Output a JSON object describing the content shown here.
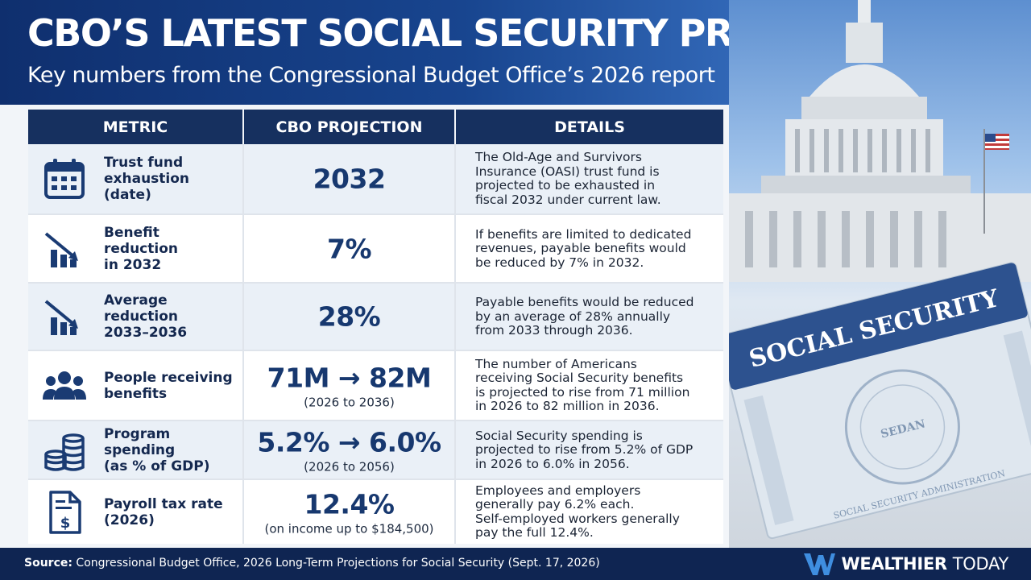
{
  "header": {
    "title": "CBO’S LATEST SOCIAL SECURITY PROJECTIONS",
    "subtitle": "Key numbers from the Congressional Budget Office’s 2026 report"
  },
  "table": {
    "columns": [
      "METRIC",
      "CBO PROJECTION",
      "DETAILS"
    ],
    "rows": [
      {
        "icon": "calendar-icon",
        "metric": "Trust fund\nexhaustion\n(date)",
        "value": "2032",
        "sub": "",
        "details": "The Old-Age and Survivors\nInsurance (OASI) trust fund is\nprojected to be exhausted in\nfiscal 2032 under current law."
      },
      {
        "icon": "declining-chart-icon",
        "metric": "Benefit\nreduction\nin 2032",
        "value": "7%",
        "sub": "",
        "details": "If benefits are limited to dedicated\nrevenues, payable benefits would\nbe reduced by 7% in 2032."
      },
      {
        "icon": "declining-chart-icon",
        "metric": "Average\nreduction\n2033–2036",
        "value": "28%",
        "sub": "",
        "details": "Payable benefits would be reduced\nby an average of 28% annually\nfrom 2033 through 2036."
      },
      {
        "icon": "people-icon",
        "metric": "People receiving\nbenefits",
        "value": "71M → 82M",
        "sub": "(2026 to 2036)",
        "details": "The number of Americans\nreceiving Social Security benefits\nis projected to rise from 71 million\nin 2026 to 82 million in 2036."
      },
      {
        "icon": "coin-stack-icon",
        "metric": "Program spending\n(as % of GDP)",
        "value": "5.2% → 6.0%",
        "sub": "(2026 to 2056)",
        "details": "Social Security spending is\nprojected to rise from 5.2% of GDP\nin 2026 to 6.0% in 2056."
      },
      {
        "icon": "tax-document-icon",
        "metric": "Payroll tax rate\n(2026)",
        "value": "12.4%",
        "sub": "(on income up to $184,500)",
        "details": "Employees and employers\ngenerally pay 6.2% each.\nSelf-employed workers generally\npay the full 12.4%."
      }
    ]
  },
  "photo": {
    "card_title": "SOCIAL SECURITY",
    "seal_text": "SOCIAL SECURITY ADMINISTRATION",
    "seal_label": "SEDAN"
  },
  "footer": {
    "source_label": "Source:",
    "source_text": "Congressional Budget Office, 2026 Long-Term Projections for Social Security (Sept. 17, 2026)",
    "brand_bold": "WEALTHIER",
    "brand_light": "TODAY"
  },
  "colors": {
    "header_navy": "#0f2f6e",
    "table_header": "#16305f",
    "value_blue": "#17386f",
    "footer_navy": "#0f2552",
    "brand_accent": "#3f8ee0"
  }
}
